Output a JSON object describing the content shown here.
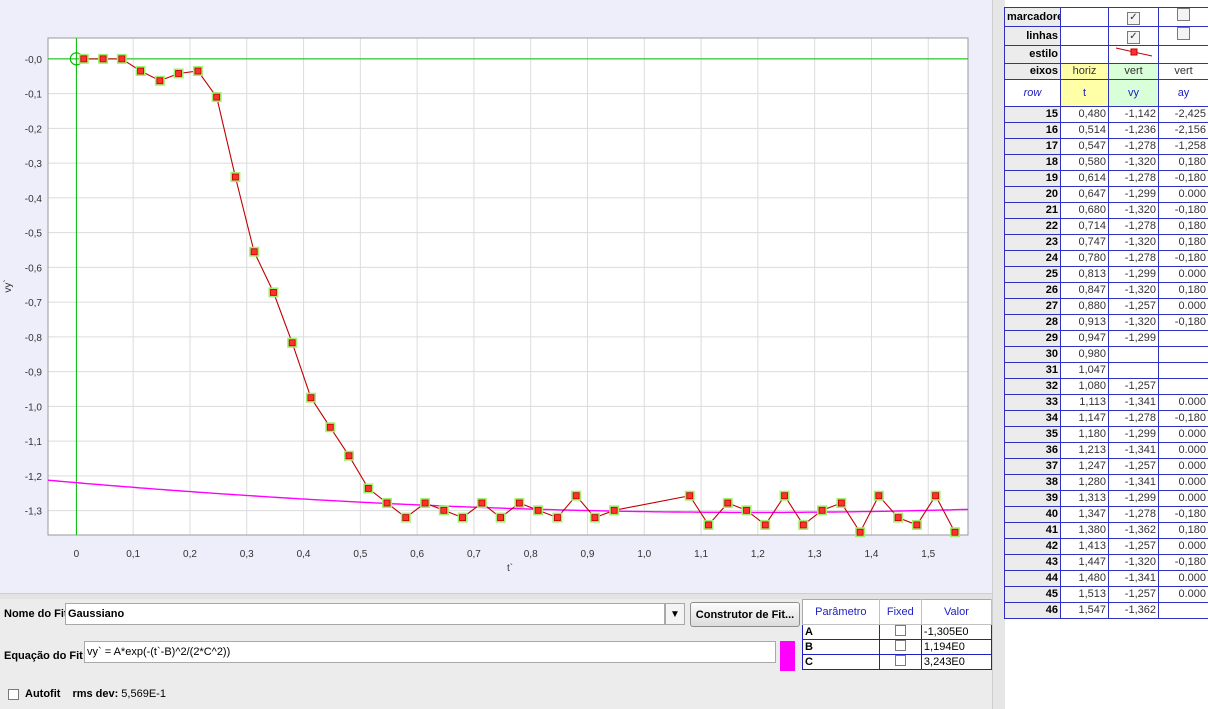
{
  "plot": {
    "ylabel": "vy`",
    "xlabel": "t`",
    "xlim": [
      -0.05,
      1.57
    ],
    "ylim": [
      -1.37,
      0.06
    ],
    "xticks": [
      "0",
      "0,1",
      "0,2",
      "0,3",
      "0,4",
      "0,5",
      "0,6",
      "0,7",
      "0,8",
      "0,9",
      "1,0",
      "1,1",
      "1,2",
      "1,3",
      "1,4",
      "1,5"
    ],
    "xtick_values": [
      0,
      0.1,
      0.2,
      0.3,
      0.4,
      0.5,
      0.6,
      0.7,
      0.8,
      0.9,
      1.0,
      1.1,
      1.2,
      1.3,
      1.4,
      1.5
    ],
    "yticks": [
      "-0,0",
      "-0,1",
      "-0,2",
      "-0,3",
      "-0,4",
      "-0,5",
      "-0,6",
      "-0,7",
      "-0,8",
      "-0,9",
      "-1,0",
      "-1,1",
      "-1,2",
      "-1,3"
    ],
    "ytick_values": [
      0,
      -0.1,
      -0.2,
      -0.3,
      -0.4,
      -0.5,
      -0.6,
      -0.7,
      -0.8,
      -0.9,
      -1.0,
      -1.1,
      -1.2,
      -1.3
    ],
    "colors": {
      "data_line": "#c00000",
      "marker_fill": "#ff3030",
      "marker_halo": "#a0f070",
      "fit_line": "#ff00ff",
      "axis_line": "#00bb00",
      "grid": "#ffffff"
    }
  },
  "chart_data": {
    "type": "scatter",
    "xlabel": "t`",
    "ylabel": "vy`",
    "x": [
      0.013,
      0.047,
      0.08,
      0.113,
      0.147,
      0.18,
      0.214,
      0.247,
      0.28,
      0.313,
      0.347,
      0.38,
      0.413,
      0.447,
      0.48,
      0.514,
      0.547,
      0.58,
      0.614,
      0.647,
      0.68,
      0.714,
      0.747,
      0.78,
      0.813,
      0.847,
      0.88,
      0.913,
      0.947,
      1.08,
      1.113,
      1.147,
      1.18,
      1.213,
      1.247,
      1.28,
      1.313,
      1.347,
      1.38,
      1.413,
      1.447,
      1.48,
      1.513,
      1.547
    ],
    "y": [
      0.0,
      0.0,
      0.0,
      -0.035,
      -0.063,
      -0.042,
      -0.035,
      -0.11,
      -0.34,
      -0.555,
      -0.672,
      -0.817,
      -0.975,
      -1.06,
      -1.142,
      -1.236,
      -1.278,
      -1.32,
      -1.278,
      -1.299,
      -1.32,
      -1.278,
      -1.32,
      -1.278,
      -1.299,
      -1.32,
      -1.257,
      -1.32,
      -1.299,
      -1.257,
      -1.341,
      -1.278,
      -1.299,
      -1.341,
      -1.257,
      -1.341,
      -1.299,
      -1.278,
      -1.362,
      -1.257,
      -1.32,
      -1.341,
      -1.257,
      -1.362
    ],
    "fit": {
      "name": "Gaussiano",
      "A": -1.305,
      "B": 1.194,
      "C": 3.243
    },
    "xlim": [
      -0.05,
      1.57
    ],
    "ylim": [
      -1.37,
      0.06
    ],
    "grid": true
  },
  "fit_panel": {
    "name_label": "Nome do Fit:",
    "name_value": "Gaussiano",
    "builder_button": "Construtor de Fit...",
    "equation_label": "Equação do Fit:",
    "equation_value": "vy` = A*exp(-(t`-B)^2/(2*C^2))",
    "autofit_label": "Autofit",
    "rms_label": "rms dev:",
    "rms_value": "5,569E-1",
    "param_headers": [
      "Parâmetro",
      "Fixed",
      "Valor"
    ],
    "params": [
      {
        "name": "A",
        "value": "-1,305E0"
      },
      {
        "name": "B",
        "value": "1,194E0"
      },
      {
        "name": "C",
        "value": "3,243E0"
      }
    ]
  },
  "data_table": {
    "options": {
      "marcadores": "marcadores",
      "linhas": "linhas",
      "estilo": "estilo",
      "eixos": "eixos",
      "axes": [
        "horiz",
        "vert",
        "vert"
      ]
    },
    "headers": [
      "row",
      "t",
      "vy",
      "ay"
    ],
    "rows": [
      [
        "15",
        "0,480",
        "-1,142",
        "-2,425"
      ],
      [
        "16",
        "0,514",
        "-1,236",
        "-2,156"
      ],
      [
        "17",
        "0,547",
        "-1,278",
        "-1,258"
      ],
      [
        "18",
        "0,580",
        "-1,320",
        "0,180"
      ],
      [
        "19",
        "0,614",
        "-1,278",
        "-0,180"
      ],
      [
        "20",
        "0,647",
        "-1,299",
        "0.000"
      ],
      [
        "21",
        "0,680",
        "-1,320",
        "-0,180"
      ],
      [
        "22",
        "0,714",
        "-1,278",
        "0,180"
      ],
      [
        "23",
        "0,747",
        "-1,320",
        "0,180"
      ],
      [
        "24",
        "0,780",
        "-1,278",
        "-0,180"
      ],
      [
        "25",
        "0,813",
        "-1,299",
        "0.000"
      ],
      [
        "26",
        "0,847",
        "-1,320",
        "0,180"
      ],
      [
        "27",
        "0,880",
        "-1,257",
        "0.000"
      ],
      [
        "28",
        "0,913",
        "-1,320",
        "-0,180"
      ],
      [
        "29",
        "0,947",
        "-1,299",
        ""
      ],
      [
        "30",
        "0,980",
        "",
        ""
      ],
      [
        "31",
        "1,047",
        "",
        ""
      ],
      [
        "32",
        "1,080",
        "-1,257",
        ""
      ],
      [
        "33",
        "1,113",
        "-1,341",
        "0.000"
      ],
      [
        "34",
        "1,147",
        "-1,278",
        "-0,180"
      ],
      [
        "35",
        "1,180",
        "-1,299",
        "0.000"
      ],
      [
        "36",
        "1,213",
        "-1,341",
        "0.000"
      ],
      [
        "37",
        "1,247",
        "-1,257",
        "0.000"
      ],
      [
        "38",
        "1,280",
        "-1,341",
        "0.000"
      ],
      [
        "39",
        "1,313",
        "-1,299",
        "0.000"
      ],
      [
        "40",
        "1,347",
        "-1,278",
        "-0,180"
      ],
      [
        "41",
        "1,380",
        "-1,362",
        "0,180"
      ],
      [
        "42",
        "1,413",
        "-1,257",
        "0.000"
      ],
      [
        "43",
        "1,447",
        "-1,320",
        "-0,180"
      ],
      [
        "44",
        "1,480",
        "-1,341",
        "0.000"
      ],
      [
        "45",
        "1,513",
        "-1,257",
        "0.000"
      ],
      [
        "46",
        "1,547",
        "-1,362",
        ""
      ]
    ]
  }
}
